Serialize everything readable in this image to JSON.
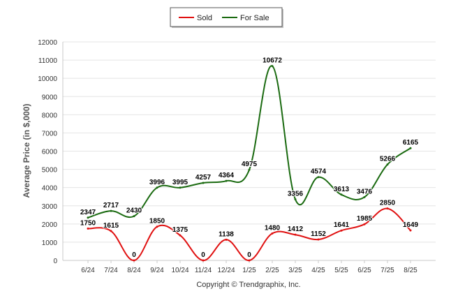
{
  "chart_data": {
    "type": "line",
    "ylabel": "Average Price (in $,000)",
    "ylim": [
      0,
      12000
    ],
    "yticks": [
      "0",
      "1000",
      "2000",
      "3000",
      "4000",
      "5000",
      "6000",
      "7000",
      "8000",
      "9000",
      "10000",
      "11000",
      "12000"
    ],
    "categories": [
      "6/24",
      "7/24",
      "8/24",
      "9/24",
      "10/24",
      "11/24",
      "12/24",
      "1/25",
      "2/25",
      "3/25",
      "4/25",
      "5/25",
      "6/25",
      "7/25",
      "8/25"
    ],
    "grid": true,
    "legend_position": "top-center",
    "series": [
      {
        "name": "Sold",
        "color": "#e01010",
        "values": [
          1750,
          1615,
          0,
          1850,
          1375,
          0,
          1138,
          0,
          1480,
          1412,
          1152,
          1641,
          1985,
          2850,
          1649
        ],
        "labels": [
          "1750",
          "1615",
          "0",
          "1850",
          "1375",
          "0",
          "1138",
          "0",
          "1480",
          "1412",
          "1152",
          "1641",
          "1985",
          "2850",
          "1649"
        ]
      },
      {
        "name": "For Sale",
        "color": "#1a6a10",
        "values": [
          2347,
          2717,
          2430,
          3996,
          3995,
          4257,
          4364,
          4975,
          10672,
          3356,
          4574,
          3613,
          3476,
          5266,
          6165
        ],
        "labels": [
          "2347",
          "2717",
          "2430",
          "3996",
          "3995",
          "4257",
          "4364",
          "4975",
          "10672",
          "3356",
          "4574",
          "3613",
          "3476",
          "5266",
          "6165"
        ]
      }
    ]
  },
  "footer": {
    "copyright": "Copyright © Trendgraphix, Inc."
  }
}
